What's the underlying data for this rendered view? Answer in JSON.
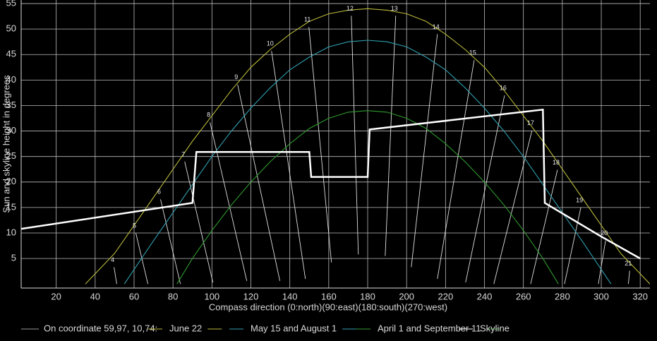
{
  "chart_data": {
    "type": "line",
    "x_label": "Compass direction (0:north)(90:east)(180:south)(270:west)",
    "y_label": "Sun and skyline height in degrees",
    "legend_title": "On coordinate 59,97, 10,74:",
    "xlim": [
      2,
      325
    ],
    "ylim": [
      -0.8,
      55.7
    ],
    "xticks": [
      20,
      40,
      60,
      80,
      100,
      120,
      140,
      160,
      180,
      200,
      220,
      240,
      260,
      280,
      300,
      320
    ],
    "yticks": [
      5,
      10,
      15,
      20,
      25,
      30,
      35,
      40,
      45,
      50,
      55
    ],
    "grid": true,
    "series": [
      {
        "name": "June 22",
        "color": "#b9b83a",
        "x": [
          35,
          50,
          60,
          70,
          80,
          90,
          100,
          110,
          120,
          130,
          140,
          150,
          160,
          170,
          180,
          190,
          200,
          210,
          220,
          230,
          240,
          250,
          260,
          270,
          280,
          290,
          300,
          310,
          325
        ],
        "values": [
          0,
          6,
          11.5,
          17,
          22.5,
          28,
          33,
          38,
          42.5,
          46,
          49,
          51.5,
          53,
          53.7,
          54,
          53.7,
          53,
          51.5,
          49,
          46,
          42.5,
          38,
          33,
          28,
          22.5,
          17,
          11.5,
          6,
          0
        ]
      },
      {
        "name": "May 15 and August 1",
        "color": "#2f9fb0",
        "x": [
          55,
          70,
          80,
          90,
          100,
          110,
          120,
          130,
          140,
          150,
          160,
          170,
          180,
          190,
          200,
          210,
          220,
          230,
          240,
          250,
          260,
          270,
          280,
          290,
          305
        ],
        "values": [
          0,
          8.5,
          14,
          19.5,
          25,
          30,
          34.5,
          38.5,
          42,
          44.5,
          46.5,
          47.5,
          47.8,
          47.5,
          46.5,
          44.5,
          42,
          38.5,
          34.5,
          30,
          25,
          19.5,
          14,
          8.5,
          0
        ]
      },
      {
        "name": "April 1 and September 11",
        "color": "#2f9a2f",
        "x": [
          82,
          90,
          100,
          110,
          120,
          130,
          140,
          150,
          160,
          170,
          180,
          190,
          200,
          210,
          220,
          230,
          240,
          250,
          260,
          270,
          278
        ],
        "values": [
          0,
          5,
          10.5,
          15.5,
          20,
          24,
          27.5,
          30.5,
          32.5,
          33.7,
          34,
          33.7,
          32.5,
          30.5,
          27.5,
          24,
          20,
          15.5,
          10.5,
          5,
          0
        ]
      },
      {
        "name": "Skyline",
        "color": "#ffffff",
        "x": [
          2,
          90,
          92,
          150,
          151,
          180,
          181,
          270,
          271,
          300,
          320
        ],
        "values": [
          10.8,
          15.9,
          25.9,
          25.9,
          21,
          21,
          30.3,
          34.2,
          15.9,
          9.3,
          5
        ]
      }
    ],
    "hour_lines": [
      {
        "label": "4",
        "x": [
          49.7,
          51.1
        ],
        "y": [
          3.3,
          0
        ]
      },
      {
        "label": "5",
        "x": [
          60.9,
          67.1
        ],
        "y": [
          10.0,
          0
        ]
      },
      {
        "label": "6",
        "x": [
          73.6,
          83.8
        ],
        "y": [
          16.6,
          0
        ]
      },
      {
        "label": "7",
        "x": [
          86.0,
          100.5
        ],
        "y": [
          24.0,
          0.3
        ]
      },
      {
        "label": "8",
        "x": [
          99.0,
          117.9
        ],
        "y": [
          31.7,
          0.6
        ]
      },
      {
        "label": "9",
        "x": [
          113.2,
          134.9
        ],
        "y": [
          39.1,
          0.6
        ]
      },
      {
        "label": "10",
        "x": [
          130.6,
          148.0
        ],
        "y": [
          45.7,
          1.0
        ]
      },
      {
        "label": "11",
        "x": [
          149.8,
          161.4
        ],
        "y": [
          50.4,
          4.2
        ]
      },
      {
        "label": "12",
        "x": [
          171.6,
          175.2
        ],
        "y": [
          52.6,
          5.8
        ]
      },
      {
        "label": "13",
        "x": [
          194.4,
          189.0
        ],
        "y": [
          52.6,
          5.5
        ]
      },
      {
        "label": "14",
        "x": [
          215.8,
          202.4
        ],
        "y": [
          49.0,
          3.3
        ]
      },
      {
        "label": "15",
        "x": [
          234.7,
          215.8
        ],
        "y": [
          43.9,
          1.0
        ]
      },
      {
        "label": "16",
        "x": [
          250.3,
          230.3
        ],
        "y": [
          37.0,
          0.3
        ]
      },
      {
        "label": "17",
        "x": [
          264.4,
          244.8
        ],
        "y": [
          30.1,
          0
        ]
      },
      {
        "label": "18",
        "x": [
          277.5,
          263.7
        ],
        "y": [
          22.4,
          0
        ]
      },
      {
        "label": "19",
        "x": [
          289.5,
          281.1
        ],
        "y": [
          15.0,
          0
        ]
      },
      {
        "label": "20",
        "x": [
          302.2,
          298.5
        ],
        "y": [
          8.5,
          0
        ]
      },
      {
        "label": "21",
        "x": [
          314.6,
          313.9
        ],
        "y": [
          2.6,
          0
        ]
      }
    ]
  }
}
